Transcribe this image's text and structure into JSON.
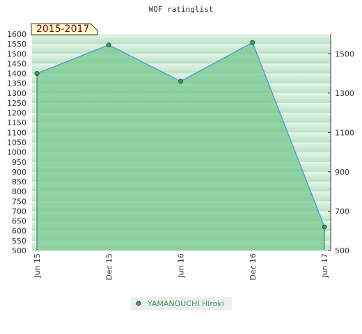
{
  "chart_data": {
    "type": "area",
    "title": "WOF ratinglist",
    "period_label": "2015-2017",
    "categories": [
      "Jun 15",
      "Dec 15",
      "Jun 16",
      "Dec 16",
      "Jun 17"
    ],
    "series": [
      {
        "name": "YAMANOUCHI Hiroki",
        "values": [
          1400,
          1545,
          1360,
          1557,
          620
        ]
      }
    ],
    "ylim": [
      500,
      1600
    ],
    "y_ticks_left": [
      500,
      550,
      600,
      650,
      700,
      750,
      800,
      850,
      900,
      950,
      1000,
      1050,
      1100,
      1150,
      1200,
      1250,
      1300,
      1350,
      1400,
      1450,
      1500,
      1550,
      1600
    ],
    "y_ticks_right": [
      500,
      700,
      900,
      1100,
      1300,
      1500
    ],
    "xlabel": "",
    "ylabel": "",
    "grid": false,
    "legend": "bottom-center",
    "colors": {
      "line": "#5aa0d0",
      "fill": "#78c890",
      "marker": "#3a9b5a",
      "band_light": "#e6f4ea",
      "band_dark": "#b8e2c4",
      "period_box": "#ffffcc",
      "legend_bg": "#eeeeee"
    }
  }
}
